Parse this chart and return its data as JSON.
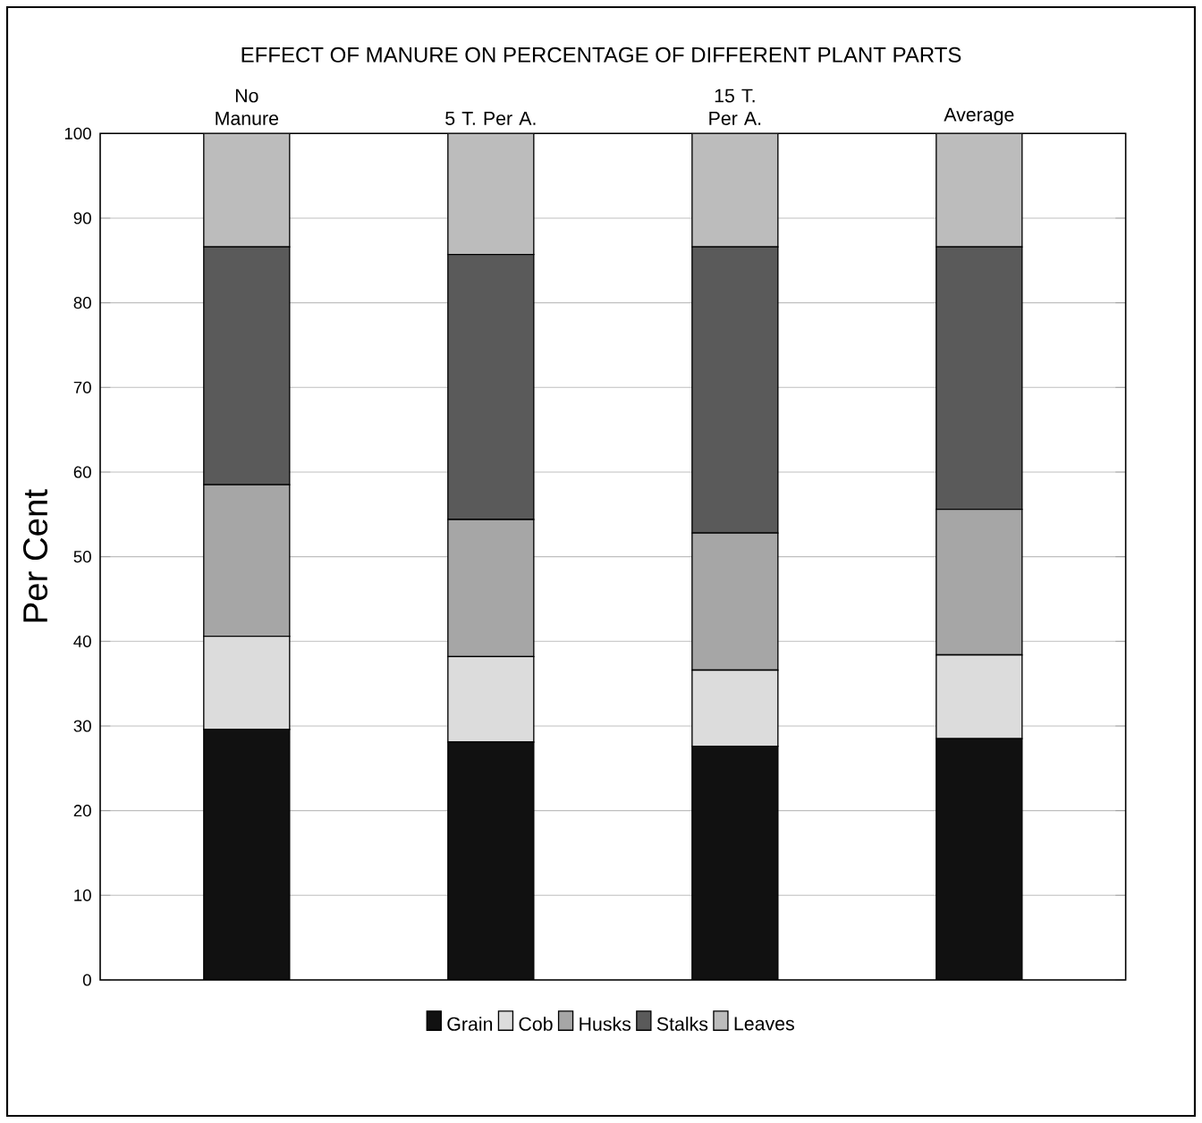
{
  "chart_data": {
    "type": "bar",
    "stacked": true,
    "title": "EFFECT OF MANURE ON PERCENTAGE OF DIFFERENT PLANT PARTS",
    "ylabel": "Per Cent",
    "categories": [
      "No Manure",
      "5 T. Per A.",
      "15 T. Per A.",
      "Average"
    ],
    "series": [
      {
        "name": "Grain",
        "color": "#111111",
        "values": [
          29.6,
          28.1,
          27.6,
          28.5
        ]
      },
      {
        "name": "Cob",
        "color": "#dcdcdc",
        "values": [
          11.0,
          10.1,
          9.0,
          9.9
        ]
      },
      {
        "name": "Husks",
        "color": "#a6a6a6",
        "values": [
          17.9,
          16.2,
          16.2,
          17.2
        ]
      },
      {
        "name": "Stalks",
        "color": "#5a5a5a",
        "values": [
          28.1,
          31.3,
          33.8,
          31.0
        ]
      },
      {
        "name": "Leaves",
        "color": "#bcbcbc",
        "values": [
          13.4,
          14.3,
          13.4,
          13.4
        ]
      }
    ],
    "ylim": [
      0,
      100
    ],
    "yticks": [
      0,
      10,
      20,
      30,
      40,
      50,
      60,
      70,
      80,
      90,
      100
    ],
    "grid": "y",
    "legend": "bottom"
  }
}
